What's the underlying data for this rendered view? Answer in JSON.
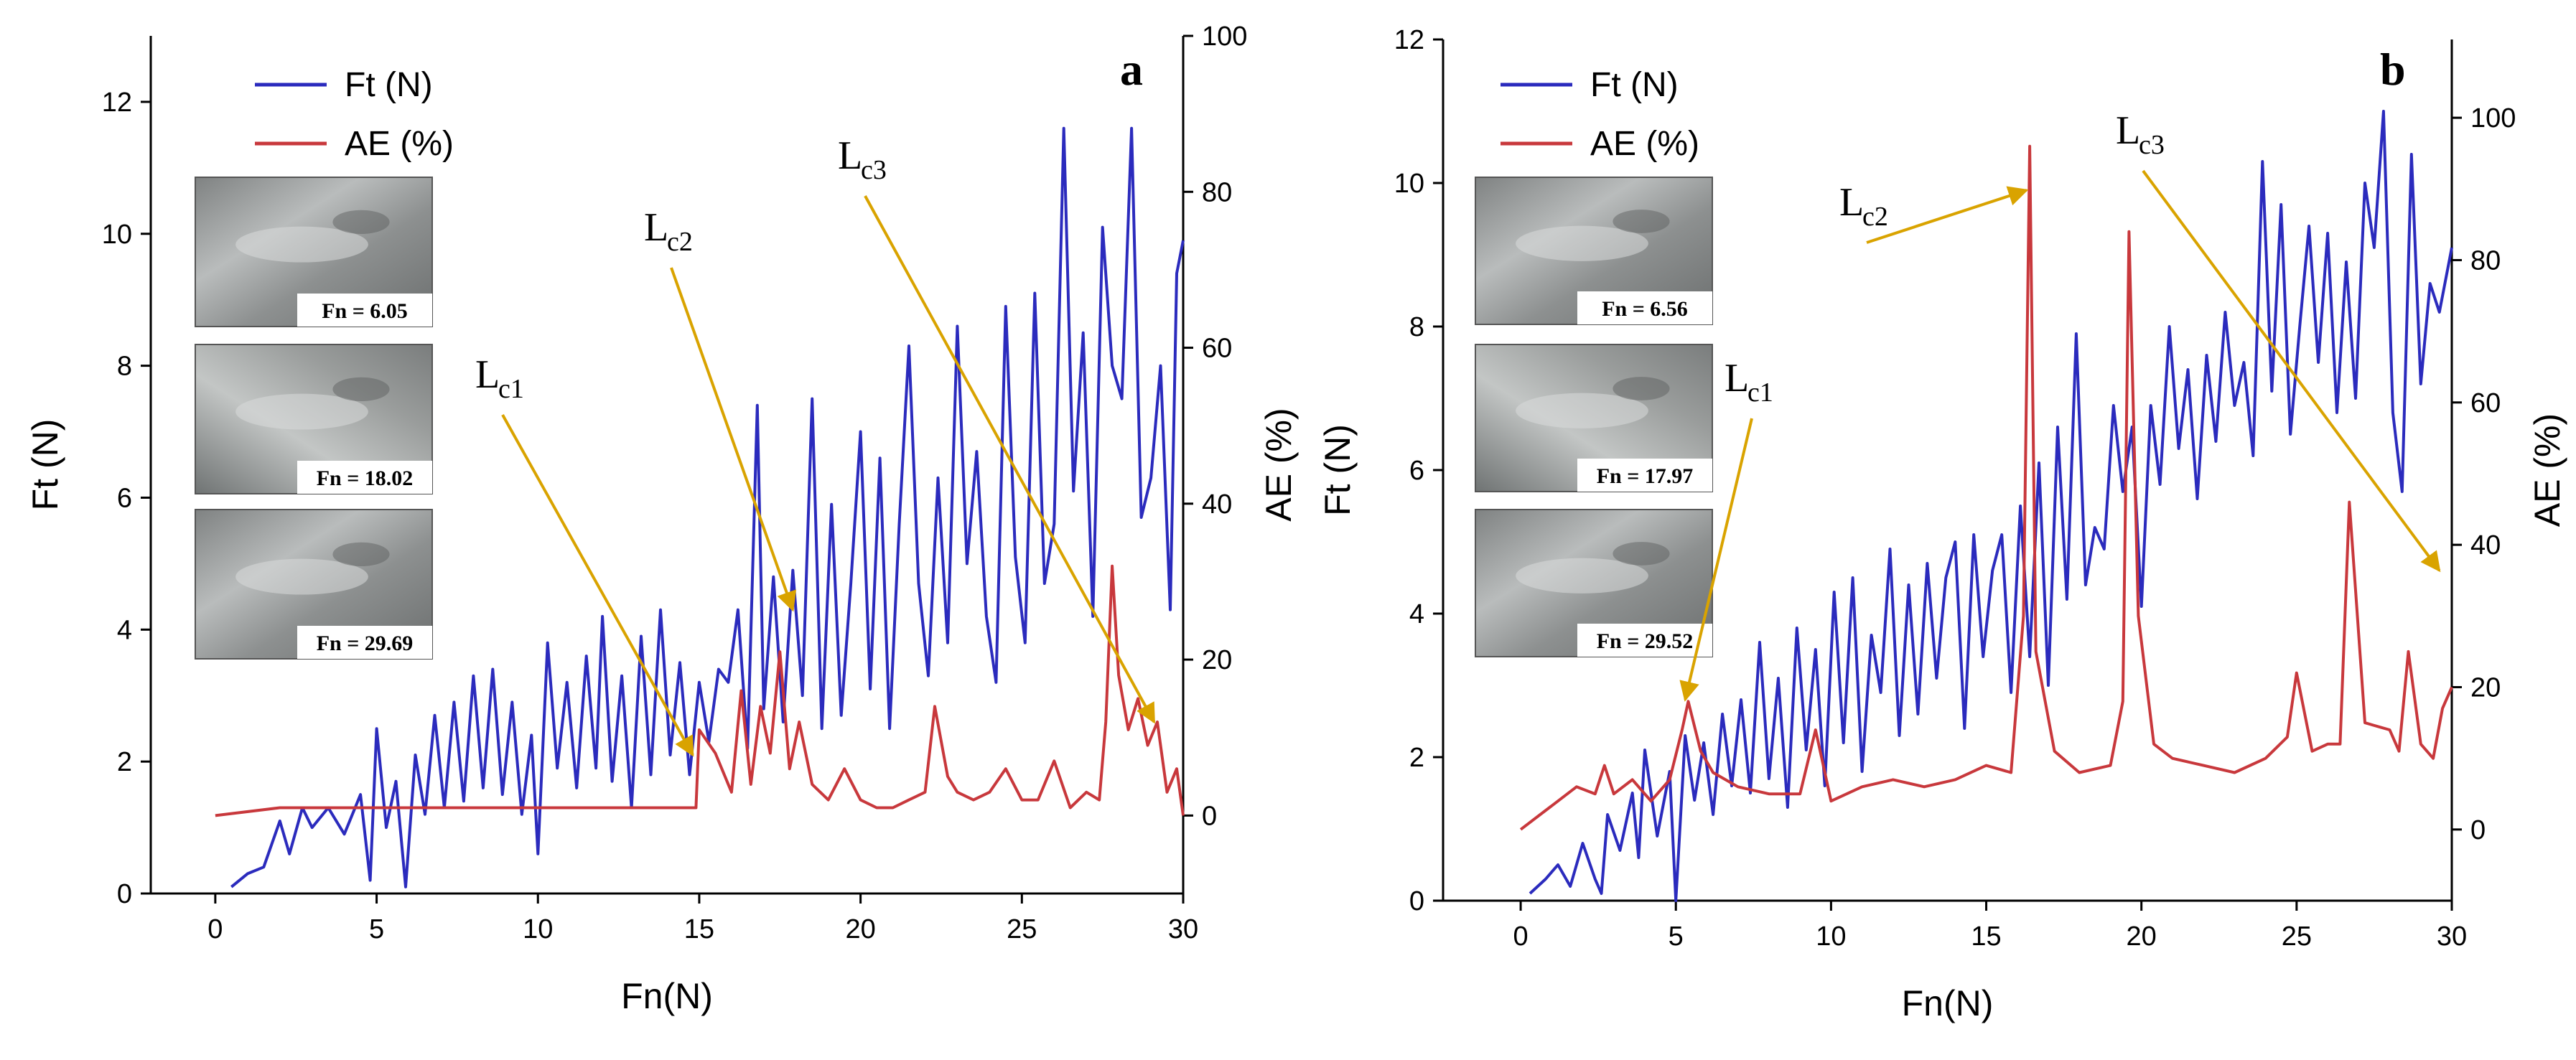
{
  "chart_data": [
    {
      "type": "line",
      "panel": "a",
      "xlabel": "Fn(N)",
      "ylabel_left": "Ft (N)",
      "ylabel_right": "AE (%)",
      "xlim": [
        -2,
        30
      ],
      "ylim_left": [
        0,
        13
      ],
      "ylim_right": [
        -10,
        100
      ],
      "xticks": [
        0,
        5,
        10,
        15,
        20,
        25,
        30
      ],
      "yticks_left": [
        0,
        2,
        4,
        6,
        8,
        10,
        12
      ],
      "yticks_right": [
        0,
        20,
        40,
        60,
        80,
        100
      ],
      "legend": [
        {
          "name": "Ft (N)",
          "color": "#2b2bbd"
        },
        {
          "name": "AE (%)",
          "color": "#c8383c"
        }
      ],
      "series": [
        {
          "name": "Ft (N)",
          "color": "#2b2bbd",
          "axis": "left",
          "x": [
            0.5,
            1,
            1.5,
            2,
            2.3,
            2.7,
            3,
            3.5,
            4,
            4.5,
            4.8,
            5,
            5.3,
            5.6,
            5.9,
            6.2,
            6.5,
            6.8,
            7.1,
            7.4,
            7.7,
            8,
            8.3,
            8.6,
            8.9,
            9.2,
            9.5,
            9.8,
            10,
            10.3,
            10.6,
            10.9,
            11.2,
            11.5,
            11.8,
            12,
            12.3,
            12.6,
            12.9,
            13.2,
            13.5,
            13.8,
            14.1,
            14.4,
            14.7,
            15,
            15.3,
            15.6,
            15.9,
            16.2,
            16.5,
            16.8,
            17,
            17.3,
            17.6,
            17.9,
            18.2,
            18.5,
            18.8,
            19.1,
            19.4,
            19.7,
            20,
            20.3,
            20.6,
            20.9,
            21.2,
            21.5,
            21.8,
            22.1,
            22.4,
            22.7,
            23,
            23.3,
            23.6,
            23.9,
            24.2,
            24.5,
            24.8,
            25.1,
            25.4,
            25.7,
            26,
            26.3,
            26.6,
            26.9,
            27.2,
            27.5,
            27.8,
            28.1,
            28.4,
            28.7,
            29,
            29.3,
            29.6,
            29.8,
            30
          ],
          "values": [
            0.1,
            0.3,
            0.4,
            1.1,
            0.6,
            1.3,
            1.0,
            1.3,
            0.9,
            1.5,
            0.2,
            2.5,
            1.0,
            1.7,
            0.1,
            2.1,
            1.2,
            2.7,
            1.3,
            2.9,
            1.4,
            3.3,
            1.6,
            3.4,
            1.5,
            2.9,
            1.2,
            2.4,
            0.6,
            3.8,
            1.9,
            3.2,
            1.6,
            3.6,
            1.9,
            4.2,
            1.7,
            3.3,
            1.3,
            3.9,
            1.8,
            4.3,
            2.1,
            3.5,
            1.8,
            3.2,
            2.3,
            3.4,
            3.2,
            4.3,
            2.2,
            7.4,
            2.8,
            4.8,
            2.6,
            4.9,
            3.0,
            7.5,
            2.5,
            5.9,
            2.7,
            4.7,
            7.0,
            3.1,
            6.6,
            2.5,
            5.6,
            8.3,
            4.7,
            3.3,
            6.3,
            3.8,
            8.6,
            5.0,
            6.7,
            4.2,
            3.2,
            8.9,
            5.1,
            3.8,
            9.1,
            4.7,
            5.6,
            11.6,
            6.1,
            8.5,
            4.2,
            10.1,
            8.0,
            7.5,
            11.6,
            5.7,
            6.3,
            8.0,
            4.3,
            9.4,
            9.9
          ]
        },
        {
          "name": "AE (%)",
          "color": "#c8383c",
          "axis": "right",
          "x": [
            0,
            2,
            4,
            6,
            8,
            10,
            12,
            14,
            14.9,
            15,
            15.5,
            16,
            16.3,
            16.6,
            16.9,
            17.2,
            17.5,
            17.8,
            18.1,
            18.5,
            19,
            19.5,
            20,
            20.5,
            21,
            21.5,
            22,
            22.3,
            22.7,
            23,
            23.5,
            24,
            24.5,
            25,
            25.5,
            26,
            26.5,
            27,
            27.4,
            27.6,
            27.8,
            28,
            28.3,
            28.6,
            28.9,
            29.2,
            29.5,
            29.8,
            30
          ],
          "values": [
            0,
            1,
            1,
            1,
            1,
            1,
            1,
            1,
            1,
            11,
            8,
            3,
            16,
            4,
            14,
            8,
            21,
            6,
            12,
            4,
            2,
            6,
            2,
            1,
            1,
            2,
            3,
            14,
            5,
            3,
            2,
            3,
            6,
            2,
            2,
            7,
            1,
            3,
            2,
            12,
            32,
            18,
            11,
            15,
            9,
            12,
            3,
            6,
            0
          ]
        }
      ],
      "insets": [
        {
          "label": "Fn = 6.05"
        },
        {
          "label": "Fn = 18.02"
        },
        {
          "label": "Fn = 29.69"
        }
      ],
      "annotations": [
        {
          "main": "L",
          "sub": "c1",
          "x": 14.8,
          "y": 2.1
        },
        {
          "main": "L",
          "sub": "c2",
          "x": 17.9,
          "y": 4.3
        },
        {
          "main": "L",
          "sub": "c3",
          "x": 29.1,
          "y": 2.6
        }
      ]
    },
    {
      "type": "line",
      "panel": "b",
      "xlabel": "Fn(N)",
      "ylabel_left": "Ft (N)",
      "ylabel_right": "AE (%)",
      "xlim": [
        -2.5,
        30
      ],
      "ylim_left": [
        0,
        12
      ],
      "ylim_right": [
        -10,
        111
      ],
      "xticks": [
        0,
        5,
        10,
        15,
        20,
        25,
        30
      ],
      "yticks_left": [
        0,
        2,
        4,
        6,
        8,
        10,
        12
      ],
      "yticks_right": [
        0,
        20,
        40,
        60,
        80,
        100
      ],
      "legend": [
        {
          "name": "Ft (N)",
          "color": "#2b2bbd"
        },
        {
          "name": "AE (%)",
          "color": "#c8383c"
        }
      ],
      "series": [
        {
          "name": "Ft (N)",
          "color": "#2b2bbd",
          "axis": "left",
          "x": [
            0.3,
            0.8,
            1.2,
            1.6,
            2,
            2.4,
            2.6,
            2.8,
            3.2,
            3.6,
            3.8,
            4,
            4.4,
            4.8,
            5,
            5.3,
            5.6,
            5.9,
            6.2,
            6.5,
            6.8,
            7.1,
            7.4,
            7.7,
            8,
            8.3,
            8.6,
            8.9,
            9.2,
            9.5,
            9.8,
            10.1,
            10.4,
            10.7,
            11,
            11.3,
            11.6,
            11.9,
            12.2,
            12.5,
            12.8,
            13.1,
            13.4,
            13.7,
            14,
            14.3,
            14.6,
            14.9,
            15.2,
            15.5,
            15.8,
            16.1,
            16.4,
            16.7,
            17,
            17.3,
            17.6,
            17.9,
            18.2,
            18.5,
            18.8,
            19.1,
            19.4,
            19.7,
            20,
            20.3,
            20.6,
            20.9,
            21.2,
            21.5,
            21.8,
            22.1,
            22.4,
            22.7,
            23,
            23.3,
            23.6,
            23.9,
            24.2,
            24.5,
            24.8,
            25.1,
            25.4,
            25.7,
            26,
            26.3,
            26.6,
            26.9,
            27.2,
            27.5,
            27.8,
            28.1,
            28.4,
            28.7,
            29,
            29.3,
            29.6,
            30
          ],
          "values": [
            0.1,
            0.3,
            0.5,
            0.2,
            0.8,
            0.3,
            0.1,
            1.2,
            0.7,
            1.5,
            0.6,
            2.1,
            0.9,
            1.8,
            0.0,
            2.3,
            1.4,
            2.2,
            1.2,
            2.6,
            1.6,
            2.8,
            1.5,
            3.6,
            1.7,
            3.1,
            1.3,
            3.8,
            2.1,
            3.5,
            1.6,
            4.3,
            2.2,
            4.5,
            1.8,
            3.7,
            2.9,
            4.9,
            2.3,
            4.4,
            2.6,
            4.7,
            3.1,
            4.5,
            5.0,
            2.4,
            5.1,
            3.4,
            4.6,
            5.1,
            2.9,
            5.5,
            3.4,
            6.1,
            3.0,
            6.6,
            4.2,
            7.9,
            4.4,
            5.2,
            4.9,
            6.9,
            5.7,
            6.6,
            4.1,
            6.9,
            5.8,
            8.0,
            6.3,
            7.4,
            5.6,
            7.6,
            6.4,
            8.2,
            6.9,
            7.5,
            6.2,
            10.3,
            7.1,
            9.7,
            6.5,
            8.0,
            9.4,
            7.5,
            9.3,
            6.8,
            8.9,
            7.0,
            10.0,
            9.1,
            11.0,
            6.8,
            5.7,
            10.4,
            7.2,
            8.6,
            8.2,
            9.1
          ]
        },
        {
          "name": "AE (%)",
          "color": "#c8383c",
          "axis": "right",
          "x": [
            0,
            0.6,
            1.2,
            1.8,
            2.4,
            2.7,
            3,
            3.6,
            4.2,
            4.8,
            5.2,
            5.4,
            5.8,
            6.2,
            7,
            8,
            9,
            9.5,
            10,
            11,
            12,
            13,
            14,
            15,
            15.8,
            16.2,
            16.4,
            16.6,
            17.2,
            18,
            19,
            19.4,
            19.6,
            19.9,
            20.4,
            21,
            22,
            23,
            24,
            24.7,
            25,
            25.5,
            26,
            26.4,
            26.7,
            27.2,
            28,
            28.3,
            28.6,
            29,
            29.4,
            29.7,
            30
          ],
          "values": [
            0,
            2,
            4,
            6,
            5,
            9,
            5,
            7,
            4,
            7,
            14,
            18,
            11,
            8,
            6,
            5,
            5,
            14,
            4,
            6,
            7,
            6,
            7,
            9,
            8,
            30,
            96,
            25,
            11,
            8,
            9,
            18,
            84,
            30,
            12,
            10,
            9,
            8,
            10,
            13,
            22,
            11,
            12,
            12,
            46,
            15,
            14,
            11,
            25,
            12,
            10,
            17,
            20
          ]
        }
      ],
      "insets": [
        {
          "label": "Fn = 6.56"
        },
        {
          "label": "Fn = 17.97"
        },
        {
          "label": "Fn = 29.52"
        }
      ],
      "annotations": [
        {
          "main": "L",
          "sub": "c1",
          "x": 5.3,
          "y": 2.8
        },
        {
          "main": "L",
          "sub": "c2",
          "x": 16.3,
          "y": 9.9
        },
        {
          "main": "L",
          "sub": "c3",
          "x": 29.6,
          "y": 4.6
        }
      ]
    }
  ]
}
